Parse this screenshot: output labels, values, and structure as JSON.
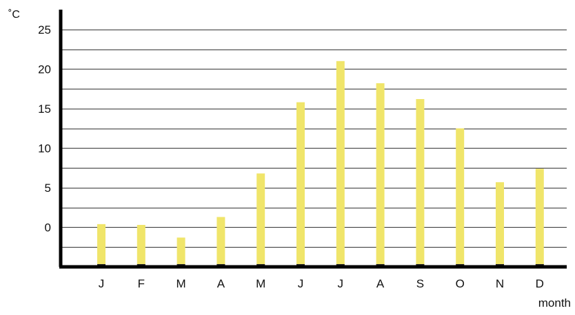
{
  "chart_data": {
    "type": "bar",
    "title": "",
    "ylabel": "˚C",
    "xlabel": "month",
    "categories": [
      "J",
      "F",
      "M",
      "A",
      "M",
      "J",
      "J",
      "A",
      "S",
      "O",
      "N",
      "D"
    ],
    "series": [
      {
        "values": [
          0.4,
          0.3,
          -1.3,
          1.3,
          6.8,
          15.8,
          21.0,
          18.2,
          16.2,
          12.5,
          5.7,
          7.4
        ],
        "color": "#f0e56a"
      }
    ],
    "ylim": [
      -5,
      27.5
    ],
    "yticks": [
      0,
      5,
      10,
      15,
      20,
      25
    ],
    "grid": true,
    "grid_step": 2.5,
    "legend": "none"
  }
}
